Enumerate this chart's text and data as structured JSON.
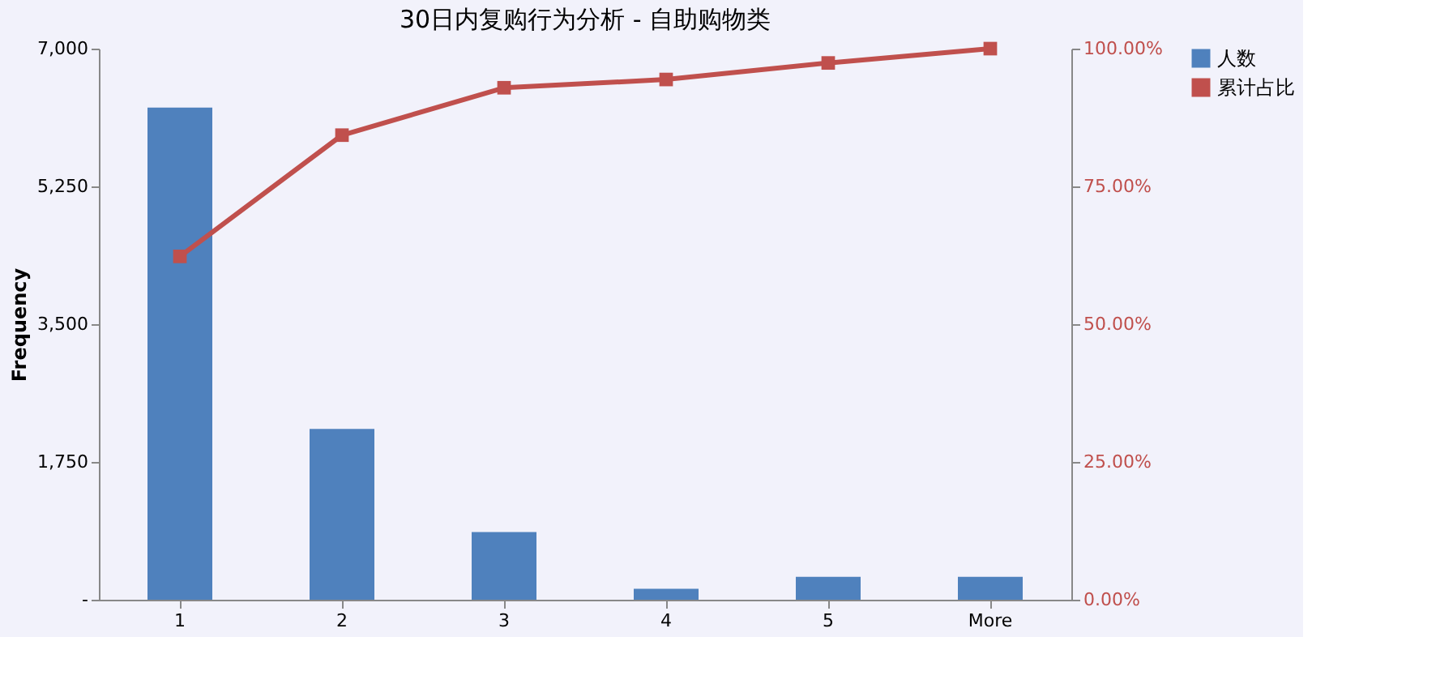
{
  "chart_data": {
    "type": "bar",
    "title": "30日内复购行为分析 - 自助购物类",
    "ylabel": "Frequency",
    "categories": [
      "1",
      "2",
      "3",
      "4",
      "5",
      "More"
    ],
    "series": [
      {
        "name": "人数",
        "color": "#4f81bd",
        "values": [
          6250,
          2170,
          860,
          140,
          290,
          290
        ]
      },
      {
        "name": "累计占比",
        "type": "line",
        "axis": "y2",
        "color": "#c0504d",
        "marker": "square",
        "values": [
          62.3,
          84.3,
          92.9,
          94.4,
          97.4,
          100
        ]
      }
    ],
    "ylim": [
      0,
      7000
    ],
    "yticks": [
      {
        "value": 0,
        "label": "-"
      },
      {
        "value": 1750,
        "label": "1,750"
      },
      {
        "value": 3500,
        "label": "3,500"
      },
      {
        "value": 5250,
        "label": "5,250"
      },
      {
        "value": 7000,
        "label": "7,000"
      }
    ],
    "y2lim": [
      0,
      100
    ],
    "y2ticks": [
      {
        "value": 0,
        "label": "0.00%"
      },
      {
        "value": 25,
        "label": "25.00%"
      },
      {
        "value": 50,
        "label": "50.00%"
      },
      {
        "value": 75,
        "label": "75.00%"
      },
      {
        "value": 100,
        "label": "100.00%"
      }
    ],
    "grid": false,
    "legend": "right"
  }
}
